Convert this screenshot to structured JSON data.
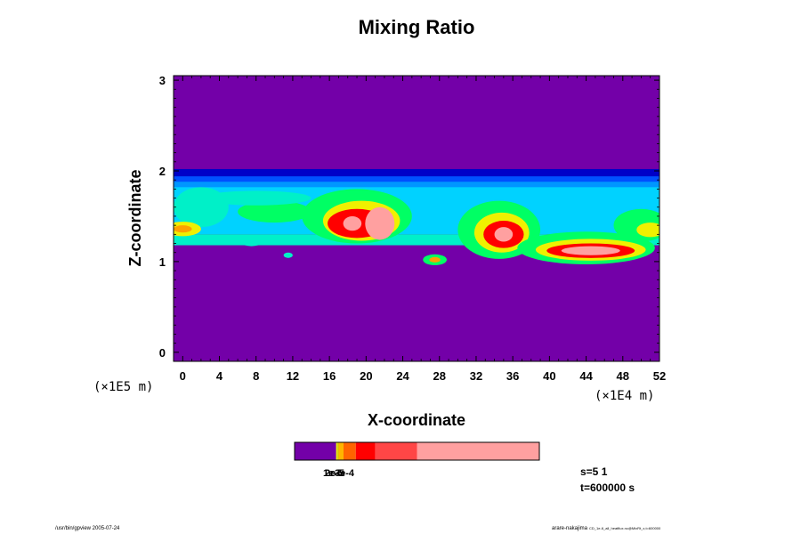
{
  "chart_data": {
    "type": "heatmap",
    "title": "Mixing Ratio",
    "xlabel": "X-coordinate",
    "ylabel": "Z-coordinate",
    "x_scale_note": "(×1E4 m)",
    "y_scale_note": "(×1E5 m)",
    "xlim": [
      -1,
      52
    ],
    "ylim": [
      -0.1,
      3.05
    ],
    "x_ticks": [
      "0",
      "4",
      "8",
      "12",
      "16",
      "20",
      "24",
      "28",
      "32",
      "36",
      "40",
      "44",
      "48",
      "52"
    ],
    "x_tick_values": [
      0,
      4,
      8,
      12,
      16,
      20,
      24,
      28,
      32,
      36,
      40,
      44,
      48,
      52
    ],
    "y_ticks": [
      "0",
      "1",
      "2",
      "3"
    ],
    "y_tick_values": [
      0,
      1,
      2,
      3
    ],
    "background_color": "#7300a8",
    "layer": {
      "description_z_range": [
        1.2,
        2.0
      ],
      "level_colors": [
        "#7300a8",
        "#0000c8",
        "#0050ff",
        "#0096ff",
        "#00d2ff",
        "#00f0c8",
        "#00ff64",
        "#a0ff00",
        "#f0f000",
        "#ffa000",
        "#ff0000",
        "#ff5050",
        "#ffa0a0"
      ],
      "cells": [
        {
          "x": -1,
          "z1": 1.92,
          "x2": 52,
          "z2": 2.02,
          "level": 1
        },
        {
          "x": -1,
          "z1": 1.86,
          "x2": 52,
          "z2": 1.94,
          "level": 2
        },
        {
          "x": -1,
          "z1": 1.8,
          "x2": 52,
          "z2": 1.88,
          "level": 3
        },
        {
          "x": -1,
          "z1": 1.3,
          "x2": 52,
          "z2": 1.82,
          "level": 4
        },
        {
          "x": -1,
          "z1": 1.18,
          "x2": 52,
          "z2": 1.3,
          "level": 5
        }
      ],
      "blobs": [
        {
          "cx": 2,
          "cz": 1.6,
          "rx": 3,
          "rz": 0.22,
          "level": 5
        },
        {
          "cx": 0,
          "cz": 1.36,
          "rx": 2,
          "rz": 0.08,
          "level": 8
        },
        {
          "cx": 0,
          "cz": 1.36,
          "rx": 1,
          "rz": 0.04,
          "level": 9
        },
        {
          "cx": 10,
          "cz": 1.55,
          "rx": 4,
          "rz": 0.12,
          "level": 6
        },
        {
          "cx": 8,
          "cz": 1.7,
          "rx": 6,
          "rz": 0.08,
          "level": 5
        },
        {
          "cx": 19,
          "cz": 1.5,
          "rx": 6,
          "rz": 0.3,
          "level": 6
        },
        {
          "cx": 19.5,
          "cz": 1.45,
          "rx": 4.2,
          "rz": 0.22,
          "level": 8
        },
        {
          "cx": 19,
          "cz": 1.42,
          "rx": 3.2,
          "rz": 0.16,
          "level": 10
        },
        {
          "cx": 21.5,
          "cz": 1.42,
          "rx": 1.6,
          "rz": 0.18,
          "level": 12
        },
        {
          "cx": 18.5,
          "cz": 1.42,
          "rx": 1.0,
          "rz": 0.08,
          "level": 12
        },
        {
          "cx": 34.5,
          "cz": 1.35,
          "rx": 4.5,
          "rz": 0.32,
          "level": 6
        },
        {
          "cx": 34.8,
          "cz": 1.32,
          "rx": 3,
          "rz": 0.22,
          "level": 8
        },
        {
          "cx": 35,
          "cz": 1.3,
          "rx": 2.2,
          "rz": 0.15,
          "level": 10
        },
        {
          "cx": 35,
          "cz": 1.3,
          "rx": 1,
          "rz": 0.08,
          "level": 12
        },
        {
          "cx": 44,
          "cz": 1.15,
          "rx": 7.5,
          "rz": 0.18,
          "level": 6
        },
        {
          "cx": 44.5,
          "cz": 1.13,
          "rx": 6,
          "rz": 0.12,
          "level": 8
        },
        {
          "cx": 44.5,
          "cz": 1.12,
          "rx": 4.8,
          "rz": 0.08,
          "level": 10
        },
        {
          "cx": 44.5,
          "cz": 1.12,
          "rx": 3.2,
          "rz": 0.05,
          "level": 12
        },
        {
          "cx": 50,
          "cz": 1.4,
          "rx": 3,
          "rz": 0.18,
          "level": 6
        },
        {
          "cx": 51,
          "cz": 1.35,
          "rx": 1.5,
          "rz": 0.08,
          "level": 8
        },
        {
          "cx": 27.5,
          "cz": 1.02,
          "rx": 1.3,
          "rz": 0.06,
          "level": 6
        },
        {
          "cx": 27.5,
          "cz": 1.02,
          "rx": 0.6,
          "rz": 0.03,
          "level": 9
        },
        {
          "cx": 7.5,
          "cz": 1.2,
          "rx": 1.0,
          "rz": 0.03,
          "level": 5
        },
        {
          "cx": 11.5,
          "cz": 1.07,
          "rx": 0.5,
          "rz": 0.03,
          "level": 5
        }
      ]
    },
    "colorbar": {
      "segments": [
        {
          "from": 0.0,
          "to": 0.17,
          "color": "#7300a8"
        },
        {
          "from": 0.17,
          "to": 0.175,
          "color": "#f0f000"
        },
        {
          "from": 0.175,
          "to": 0.18,
          "color": "#c8c800"
        },
        {
          "from": 0.18,
          "to": 0.2,
          "color": "#ffb400"
        },
        {
          "from": 0.2,
          "to": 0.25,
          "color": "#ff6400"
        },
        {
          "from": 0.25,
          "to": 0.33,
          "color": "#ff0000"
        },
        {
          "from": 0.33,
          "to": 0.5,
          "color": "#ff4646"
        },
        {
          "from": 0.5,
          "to": 1.0,
          "color": "#ffa0a0"
        }
      ],
      "labels": [
        "1e-5",
        "2e-5",
        "3e-4"
      ]
    },
    "annotations": {
      "s_label": "s=5 1",
      "t_label": "t=600000 s"
    }
  },
  "footer": {
    "left": "/usr/bin/gpview 2005-07-24",
    "right": "arare-nakajima",
    "right_small": "CD_1e-6_all_heatflux.nc@MixRt_x,t=600000"
  }
}
